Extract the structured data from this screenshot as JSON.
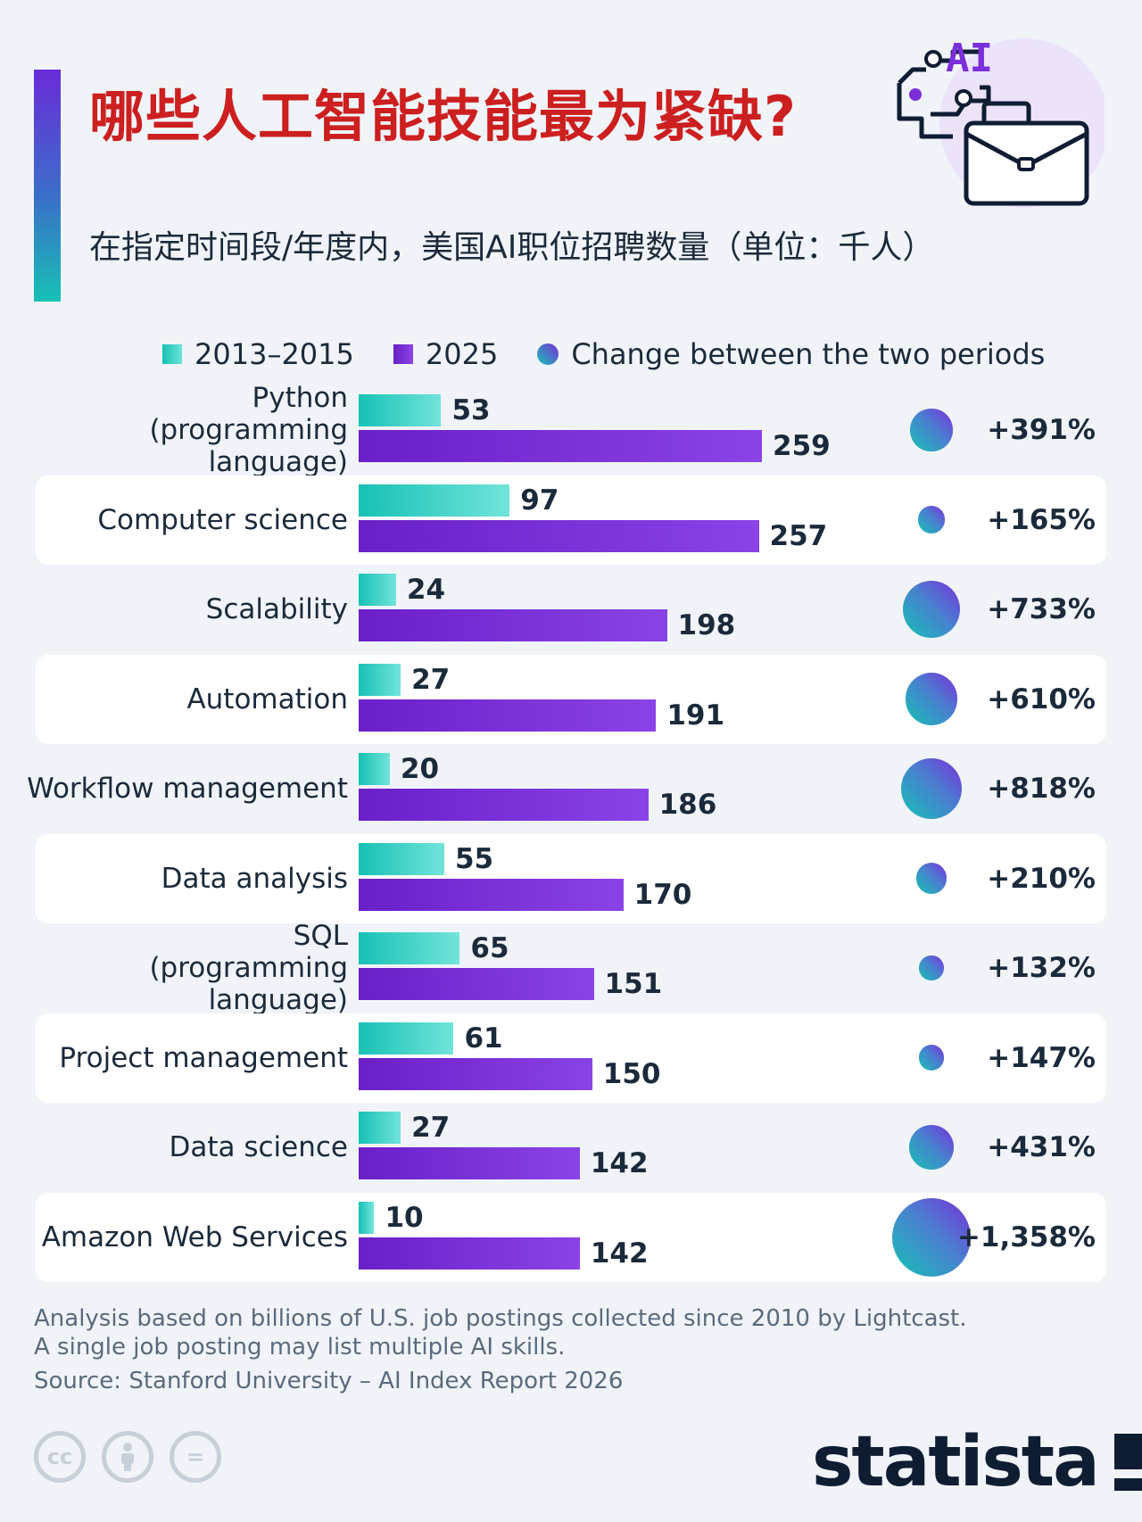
{
  "header": {
    "title": "哪些人工智能技能最为紧缺?",
    "subtitle": "在指定时间段/年度内，美国AI职位招聘数量（单位：千人）",
    "illustration_text": "AI"
  },
  "legend": {
    "series_a": "2013–2015",
    "series_b": "2025",
    "change": "Change between the two periods"
  },
  "chart_data": {
    "type": "bar",
    "orientation": "horizontal",
    "title": "哪些人工智能技能最为紧缺?",
    "subtitle": "在指定时间段/年度内，美国AI职位招聘数量（单位：千人）",
    "categories": [
      [
        "Python",
        "(programming language)"
      ],
      [
        "Computer science"
      ],
      [
        "Scalability"
      ],
      [
        "Automation"
      ],
      [
        "Workflow management"
      ],
      [
        "Data analysis"
      ],
      [
        "SQL",
        "(programming language)"
      ],
      [
        "Project management"
      ],
      [
        "Data science"
      ],
      [
        "Amazon Web Services"
      ]
    ],
    "series": [
      {
        "name": "2013–2015",
        "values": [
          53,
          97,
          24,
          27,
          20,
          55,
          65,
          61,
          27,
          10
        ]
      },
      {
        "name": "2025",
        "values": [
          259,
          257,
          198,
          191,
          186,
          170,
          151,
          150,
          142,
          142
        ]
      }
    ],
    "change": {
      "name": "Change between the two periods",
      "values": [
        391,
        165,
        733,
        610,
        818,
        210,
        132,
        147,
        431,
        1358
      ],
      "labels": [
        "+391%",
        "+165%",
        "+733%",
        "+610%",
        "+818%",
        "+210%",
        "+132%",
        "+147%",
        "+431%",
        "+1,358%"
      ]
    },
    "xlim": [
      0,
      259
    ],
    "legend": "top",
    "grid": false
  },
  "colors": {
    "title": "#cc1f1f",
    "series_a": "#16c1b4",
    "series_b": "#6a1fc7",
    "brand": "#0f1d33"
  },
  "footer": {
    "note_1": "Analysis based on billions of U.S. job postings collected since 2010 by Lightcast.",
    "note_2": "A single job posting may list multiple AI skills.",
    "source": "Source: Stanford University – AI Index Report 2026",
    "license_icons": [
      "cc-icon",
      "attribution-icon",
      "noderivs-icon"
    ],
    "cc_text": "cc",
    "nd_text": "=",
    "brand": "statista"
  }
}
